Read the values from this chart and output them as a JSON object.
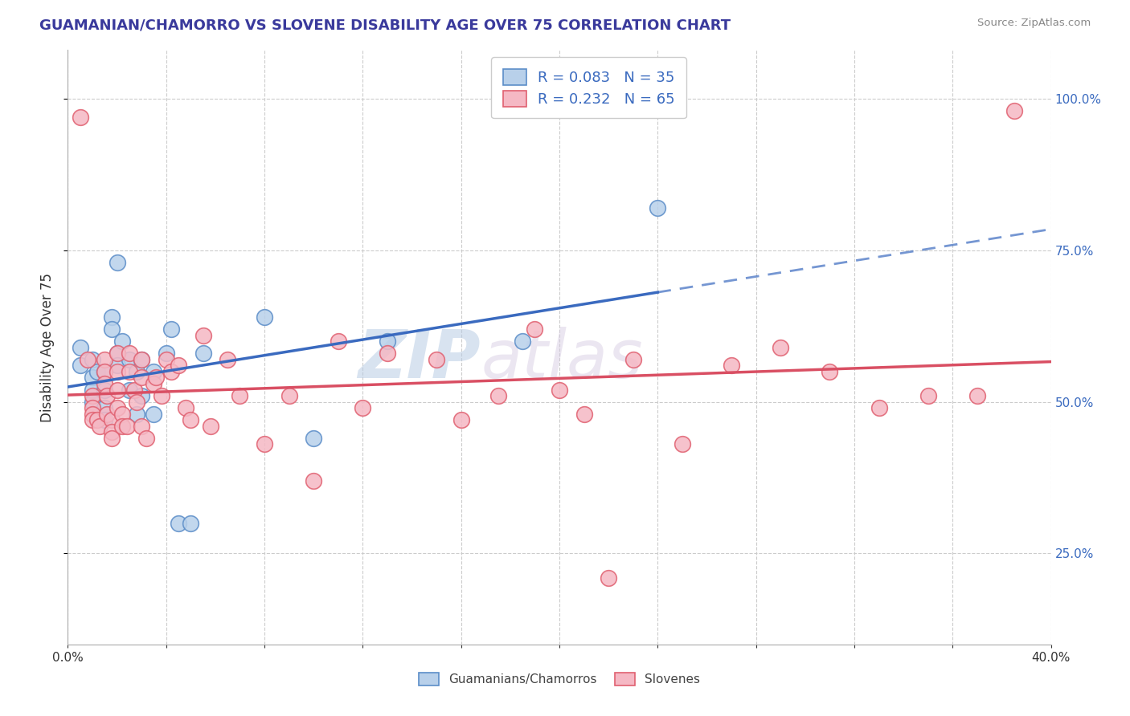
{
  "title": "GUAMANIAN/CHAMORRO VS SLOVENE DISABILITY AGE OVER 75 CORRELATION CHART",
  "source": "Source: ZipAtlas.com",
  "ylabel": "Disability Age Over 75",
  "yticks": [
    0.25,
    0.5,
    0.75,
    1.0
  ],
  "ytick_labels": [
    "25.0%",
    "50.0%",
    "75.0%",
    "100.0%"
  ],
  "xmin": 0.0,
  "xmax": 0.4,
  "ymin": 0.1,
  "ymax": 1.08,
  "legend1_r": "0.083",
  "legend1_n": "35",
  "legend2_r": "0.232",
  "legend2_n": "65",
  "color_blue_fill": "#b8d0ea",
  "color_blue_edge": "#5b8dc8",
  "color_pink_fill": "#f5b8c4",
  "color_pink_edge": "#e06070",
  "color_blue_line": "#3a6abf",
  "color_pink_line": "#d94f63",
  "watermark_zip": "ZIP",
  "watermark_atlas": "atlas",
  "legend_label1": "Guamanians/Chamorros",
  "legend_label2": "Slovenes",
  "blue_x": [
    0.005,
    0.005,
    0.01,
    0.01,
    0.01,
    0.01,
    0.012,
    0.015,
    0.015,
    0.015,
    0.015,
    0.018,
    0.018,
    0.02,
    0.02,
    0.02,
    0.022,
    0.025,
    0.025,
    0.028,
    0.028,
    0.03,
    0.03,
    0.035,
    0.035,
    0.04,
    0.042,
    0.045,
    0.05,
    0.055,
    0.08,
    0.1,
    0.13,
    0.185,
    0.24
  ],
  "blue_y": [
    0.56,
    0.59,
    0.57,
    0.54,
    0.52,
    0.5,
    0.55,
    0.55,
    0.52,
    0.49,
    0.47,
    0.64,
    0.62,
    0.58,
    0.56,
    0.73,
    0.6,
    0.57,
    0.52,
    0.55,
    0.48,
    0.57,
    0.51,
    0.55,
    0.48,
    0.58,
    0.62,
    0.3,
    0.3,
    0.58,
    0.64,
    0.44,
    0.6,
    0.6,
    0.82
  ],
  "pink_x": [
    0.005,
    0.008,
    0.01,
    0.01,
    0.01,
    0.01,
    0.012,
    0.013,
    0.015,
    0.015,
    0.015,
    0.016,
    0.016,
    0.018,
    0.018,
    0.018,
    0.02,
    0.02,
    0.02,
    0.02,
    0.022,
    0.022,
    0.024,
    0.025,
    0.025,
    0.027,
    0.028,
    0.03,
    0.03,
    0.03,
    0.032,
    0.035,
    0.036,
    0.038,
    0.04,
    0.042,
    0.045,
    0.048,
    0.05,
    0.055,
    0.058,
    0.065,
    0.07,
    0.08,
    0.09,
    0.1,
    0.11,
    0.12,
    0.13,
    0.15,
    0.16,
    0.175,
    0.19,
    0.2,
    0.21,
    0.22,
    0.23,
    0.25,
    0.27,
    0.29,
    0.31,
    0.33,
    0.35,
    0.37,
    0.385
  ],
  "pink_y": [
    0.97,
    0.57,
    0.51,
    0.49,
    0.48,
    0.47,
    0.47,
    0.46,
    0.57,
    0.55,
    0.53,
    0.51,
    0.48,
    0.47,
    0.45,
    0.44,
    0.58,
    0.55,
    0.52,
    0.49,
    0.48,
    0.46,
    0.46,
    0.58,
    0.55,
    0.52,
    0.5,
    0.57,
    0.54,
    0.46,
    0.44,
    0.53,
    0.54,
    0.51,
    0.57,
    0.55,
    0.56,
    0.49,
    0.47,
    0.61,
    0.46,
    0.57,
    0.51,
    0.43,
    0.51,
    0.37,
    0.6,
    0.49,
    0.58,
    0.57,
    0.47,
    0.51,
    0.62,
    0.52,
    0.48,
    0.21,
    0.57,
    0.43,
    0.56,
    0.59,
    0.55,
    0.49,
    0.51,
    0.51,
    0.98
  ]
}
